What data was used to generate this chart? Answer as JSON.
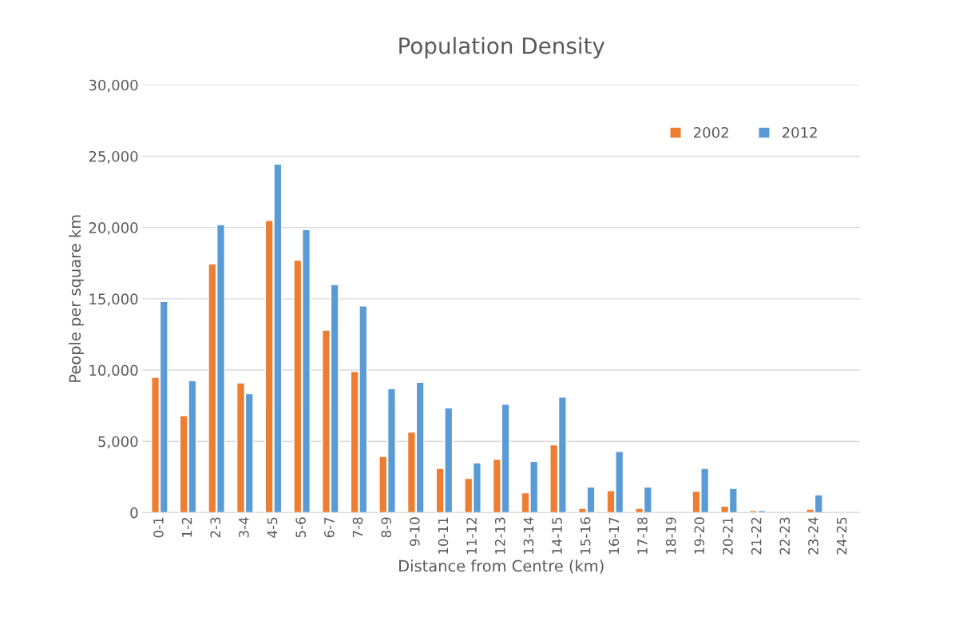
{
  "chart_data": {
    "type": "bar",
    "title": "Population Density",
    "xlabel": "Distance from Centre (km)",
    "ylabel": "People per square km",
    "categories": [
      "0-1",
      "1-2",
      "2-3",
      "3-4",
      "4-5",
      "5-6",
      "6-7",
      "7-8",
      "8-9",
      "9-10",
      "10-11",
      "11-12",
      "12-13",
      "13-14",
      "14-15",
      "15-16",
      "16-17",
      "17-18",
      "18-19",
      "19-20",
      "20-21",
      "21-22",
      "22-23",
      "23-24",
      "24-25"
    ],
    "series": [
      {
        "name": "2002",
        "color": "#ed7d31",
        "values": [
          9500,
          6800,
          17450,
          9100,
          20500,
          17700,
          12800,
          9900,
          3950,
          5650,
          3100,
          2400,
          3750,
          1400,
          4750,
          300,
          1550,
          300,
          null,
          1500,
          450,
          150,
          null,
          250,
          null
        ]
      },
      {
        "name": "2012",
        "color": "#5b9bd5",
        "values": [
          14800,
          9250,
          20200,
          8350,
          24450,
          19850,
          16000,
          14500,
          8700,
          9150,
          7350,
          3500,
          7600,
          3600,
          8100,
          1800,
          4300,
          1800,
          null,
          3100,
          1700,
          150,
          null,
          1250,
          null
        ]
      }
    ],
    "ylim": [
      0,
      30000
    ],
    "yticks": [
      0,
      {
        "value": 5000,
        "label": "5,000"
      },
      {
        "value": 10000,
        "label": "10,000"
      },
      {
        "value": 15000,
        "label": "15,000"
      },
      {
        "value": 20000,
        "label": "20,000"
      },
      {
        "value": 25000,
        "label": "25,000"
      },
      {
        "value": 30000,
        "label": "30,000"
      }
    ],
    "grid": "y",
    "legend": "top right"
  }
}
